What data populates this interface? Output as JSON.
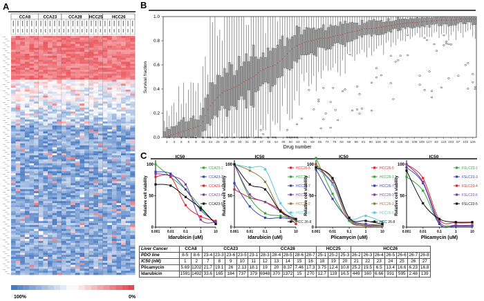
{
  "panels": {
    "a": "A",
    "b": "B",
    "c": "C"
  },
  "heatmap": {
    "groups": [
      {
        "name": "CCA8",
        "cols": 6
      },
      {
        "name": "CCA23",
        "cols": 5
      },
      {
        "name": "CCA28",
        "cols": 6
      },
      {
        "name": "HCC25",
        "cols": 3
      },
      {
        "name": "HCC26",
        "cols": 7
      }
    ],
    "colorbar": {
      "low_label": "100%",
      "high_label": "0%",
      "colors": [
        "#4a7cc4",
        "#ffffff",
        "#e8464e"
      ]
    }
  },
  "chart_data": [
    {
      "type": "box",
      "ylabel": "Survival fraction",
      "xlabel": "Drug number",
      "ylim": [
        0,
        1.0
      ],
      "yticks": [
        "0.0",
        "0.2",
        "0.4",
        "0.6",
        "0.8",
        "1.0"
      ],
      "xticks": [
        "2",
        "3",
        "6",
        "8",
        "9",
        "15",
        "24",
        "25",
        "19",
        "29",
        "30",
        "31",
        "39",
        "37",
        "45",
        "44",
        "49",
        "60",
        "63",
        "61",
        "59",
        "65",
        "74",
        "79",
        "84",
        "68",
        "88",
        "81",
        "90",
        "106",
        "86",
        "82",
        "115",
        "92",
        "108",
        "109",
        "127",
        "93",
        "123",
        "103",
        "97",
        "102",
        "126"
      ],
      "medians": [
        0.0,
        0.02,
        0.04,
        0.06,
        0.08,
        0.1,
        0.25,
        0.32,
        0.38,
        0.4,
        0.43,
        0.47,
        0.5,
        0.55,
        0.58,
        0.6,
        0.65,
        0.72,
        0.76,
        0.79,
        0.8,
        0.82,
        0.82,
        0.84,
        0.85,
        0.87,
        0.88,
        0.9,
        0.9,
        0.91,
        0.92,
        0.93,
        0.94,
        0.95,
        0.95,
        0.96,
        0.96,
        0.97,
        0.97,
        0.97,
        0.98,
        0.98,
        0.98
      ],
      "median_color": "#c0392b"
    },
    {
      "type": "line",
      "title": "IC50",
      "xlabel": "Idarubicin (uM)",
      "ylabel": "Relative cell viability",
      "x": [
        0.001,
        0.01,
        0.1,
        1,
        10
      ],
      "xscale": "log",
      "yticks": [
        "0",
        "50",
        "100"
      ],
      "series": [
        {
          "name": "CCA23-1",
          "color": "#2fa83a",
          "values": [
            100,
            80,
            60,
            32,
            5
          ]
        },
        {
          "name": "CCA23-3",
          "color": "#3a3fb0",
          "values": [
            88,
            85,
            60,
            27,
            8
          ]
        },
        {
          "name": "CCA23-4",
          "color": "#e8212a",
          "values": [
            80,
            80,
            35,
            17,
            10
          ]
        },
        {
          "name": "CCA23-6",
          "color": "#7b3fa0",
          "values": [
            85,
            82,
            68,
            12,
            8
          ]
        },
        {
          "name": "CCA23-5",
          "color": "#111111",
          "values": [
            68,
            66,
            48,
            30,
            5
          ]
        }
      ]
    },
    {
      "type": "line",
      "title": "IC50",
      "xlabel": "Idarubicin (uM)",
      "ylabel": "Relative cell viability",
      "x": [
        0.001,
        0.01,
        0.1,
        1,
        10
      ],
      "xscale": "log",
      "yticks": [
        "0",
        "50",
        "100"
      ],
      "series": [
        {
          "name": "HCC26-5",
          "color": "#e8212a",
          "values": [
            60,
            47,
            40,
            27,
            5
          ]
        },
        {
          "name": "HCC26-1",
          "color": "#2fa83a",
          "values": [
            100,
            47,
            22,
            18,
            12
          ]
        },
        {
          "name": "HCC26-7",
          "color": "#3a3fb0",
          "values": [
            70,
            33,
            15,
            15,
            12
          ]
        },
        {
          "name": "HCC26-3",
          "color": "#7b3fa0",
          "values": [
            100,
            52,
            40,
            25,
            12
          ]
        },
        {
          "name": "HCC26-2",
          "color": "#8a7a3a",
          "values": [
            100,
            90,
            72,
            25,
            10
          ]
        },
        {
          "name": "HCC26-6",
          "color": "#5bc8d8",
          "values": [
            100,
            95,
            92,
            38,
            13
          ]
        },
        {
          "name": "HCC 26-8",
          "color": "#111111",
          "values": [
            100,
            68,
            60,
            25,
            13
          ]
        }
      ]
    },
    {
      "type": "line",
      "title": "IC50",
      "xlabel": "Plicamycin (uM)",
      "ylabel": "Relative cell viability",
      "x": [
        0.001,
        0.01,
        0.1,
        1,
        10
      ],
      "xscale": "log",
      "yticks": [
        "0",
        "50",
        "100"
      ],
      "series": [
        {
          "name": "HCC26-5",
          "color": "#e8212a",
          "values": [
            100,
            68,
            10,
            3,
            3
          ]
        },
        {
          "name": "HCC26-1",
          "color": "#2fa83a",
          "values": [
            110,
            53,
            10,
            2,
            3
          ]
        },
        {
          "name": "HCC26-7",
          "color": "#3a3fb0",
          "values": [
            92,
            45,
            12,
            5,
            3
          ]
        },
        {
          "name": "HCC26-3",
          "color": "#7b3fa0",
          "values": [
            95,
            70,
            14,
            3,
            2
          ]
        },
        {
          "name": "HCC26-2",
          "color": "#8a7a3a",
          "values": [
            98,
            75,
            13,
            2,
            3
          ]
        },
        {
          "name": "HCC26-6",
          "color": "#5bc8d8",
          "values": [
            95,
            68,
            15,
            18,
            8
          ]
        },
        {
          "name": "HCC 26-8",
          "color": "#111111",
          "values": [
            95,
            78,
            15,
            10,
            5
          ]
        }
      ]
    },
    {
      "type": "line",
      "title": "IC50",
      "xlabel": "Plicamycin (uM)",
      "ylabel": "Relative cell viability",
      "x": [
        0.001,
        0.01,
        0.1,
        1,
        10
      ],
      "xscale": "log",
      "yticks": [
        "0",
        "50",
        "100"
      ],
      "series": [
        {
          "name": "FSLC23-1",
          "color": "#2fa83a",
          "values": [
            80,
            58,
            5,
            2,
            2
          ]
        },
        {
          "name": "FSLC23-3",
          "color": "#3a3fb0",
          "values": [
            95,
            70,
            5,
            2,
            2
          ]
        },
        {
          "name": "FSLC23-4",
          "color": "#e8212a",
          "values": [
            100,
            78,
            12,
            7,
            7
          ]
        },
        {
          "name": "FSLC23-6",
          "color": "#7b3fa0",
          "values": [
            100,
            72,
            8,
            3,
            3
          ]
        },
        {
          "name": "FSLC23-5",
          "color": "#111111",
          "values": [
            90,
            38,
            13,
            8,
            8
          ]
        }
      ]
    }
  ],
  "table": {
    "header": "Liver Cancer",
    "groups": [
      {
        "name": "CCA8",
        "span": 2
      },
      {
        "name": "CCA23",
        "span": 5
      },
      {
        "name": "CCA28",
        "span": 5
      },
      {
        "name": "HCC25",
        "span": 3
      },
      {
        "name": "HCC26",
        "span": 7
      }
    ],
    "rows": [
      {
        "label": "PDO line",
        "italic": true,
        "cells": [
          "8-5",
          "8-6",
          "23-4",
          "23-3",
          "23-6",
          "23-5",
          "23-1",
          "28-3",
          "28-4",
          "28-5",
          "28-6",
          "28-7",
          "25-1",
          "25-2",
          "25-3",
          "26-2",
          "26-3",
          "26-4",
          "26-5",
          "26-6",
          "26-7",
          "26-8"
        ]
      },
      {
        "label": "IC50 (nM)",
        "italic": true,
        "cells": [
          "1",
          "2",
          "7",
          "8",
          "9",
          "10",
          "11",
          "12",
          "13",
          "14",
          "15",
          "16",
          "18",
          "19",
          "20",
          "21",
          "22",
          "23",
          "24",
          "25",
          "26",
          "27"
        ]
      },
      {
        "label": "Plicamycin",
        "italic": false,
        "cells": [
          "5.69",
          "1202",
          "21.7",
          "19.1",
          "26",
          "2.13",
          "18.1",
          "19",
          "20",
          "8.37",
          "7.46",
          "17.3",
          "3.75",
          "12.4",
          "10.8",
          "25.2",
          "19.5",
          "6.5",
          "13.4",
          "16.6",
          "6.23",
          "16.8"
        ]
      },
      {
        "label": "Idarubicin",
        "italic": false,
        "cells": [
          "1591",
          "1492",
          "33.6",
          "165",
          "184",
          "737",
          "379",
          "6948",
          "370",
          "1372",
          "15",
          "270",
          "12.7",
          "119",
          "16.5",
          "449",
          "160",
          "6.66",
          "931",
          "595",
          "2.48",
          "139"
        ]
      }
    ]
  }
}
